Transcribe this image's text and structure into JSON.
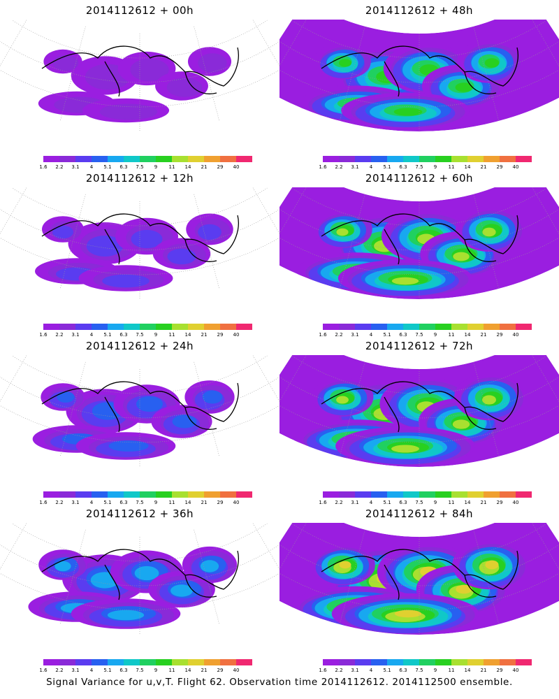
{
  "panels": [
    {
      "title": "2014112612 + 00h",
      "intensity": 0.15
    },
    {
      "title": "2014112612 + 48h",
      "intensity": 0.7
    },
    {
      "title": "2014112612 + 12h",
      "intensity": 0.25
    },
    {
      "title": "2014112612 + 60h",
      "intensity": 0.78
    },
    {
      "title": "2014112612 + 24h",
      "intensity": 0.32
    },
    {
      "title": "2014112612 + 72h",
      "intensity": 0.85
    },
    {
      "title": "2014112612 + 36h",
      "intensity": 0.45
    },
    {
      "title": "2014112612 + 84h",
      "intensity": 0.95
    }
  ],
  "colorbar": {
    "labels": [
      "1.6",
      "2.2",
      "3.1",
      "4",
      "5.1",
      "6.3",
      "7.5",
      "9",
      "11",
      "14",
      "21",
      "29",
      "40"
    ],
    "colors": [
      "#9a1ee0",
      "#8a2ad8",
      "#5a3cf0",
      "#2860f0",
      "#18a8f0",
      "#10c8c8",
      "#20d060",
      "#28d020",
      "#a8e030",
      "#e0d030",
      "#f0a030",
      "#f07040",
      "#f02870"
    ]
  },
  "caption": "Signal Variance for u,v,T. Flight 62. Observation time 2014112612. 2014112500 ensemble."
}
